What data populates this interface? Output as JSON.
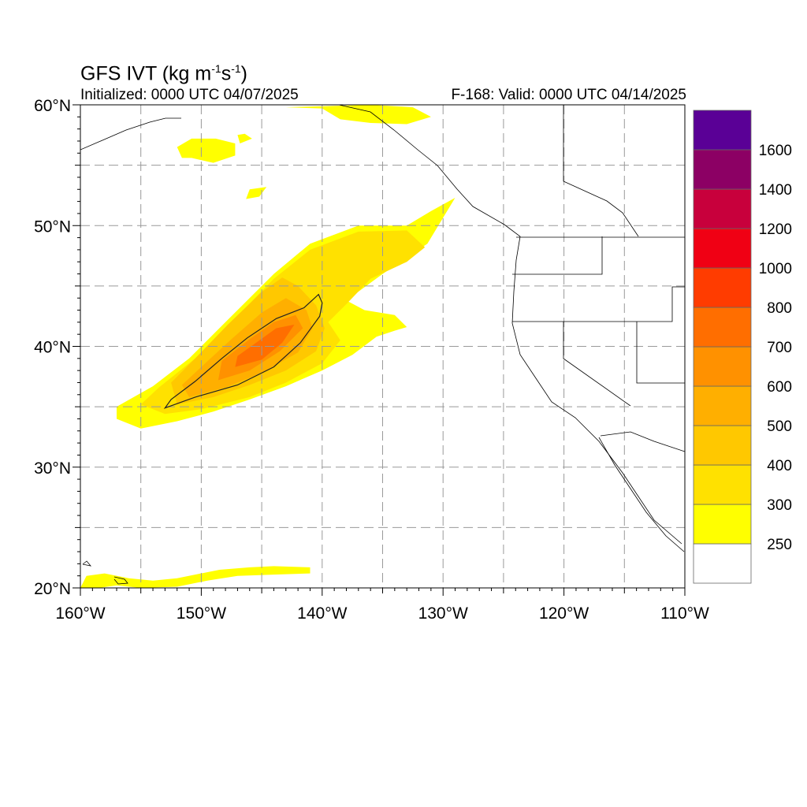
{
  "header": {
    "title_prefix": "GFS IVT (kg m",
    "title_exp1": "-1",
    "title_mid": "s",
    "title_exp2": "-1",
    "title_suffix": ")",
    "initialized": "Initialized: 0000 UTC 04/07/2025",
    "valid": "F-168: Valid: 0000 UTC 04/14/2025"
  },
  "map": {
    "lon_range": [
      -160,
      -110
    ],
    "lat_range": [
      20,
      60
    ],
    "lat_tick_labels": [
      {
        "lat": 60,
        "label": "60°N"
      },
      {
        "lat": 50,
        "label": "50°N"
      },
      {
        "lat": 40,
        "label": "40°N"
      },
      {
        "lat": 30,
        "label": "30°N"
      },
      {
        "lat": 20,
        "label": "20°N"
      }
    ],
    "lon_tick_labels": [
      {
        "lon": -160,
        "label": "160°W"
      },
      {
        "lon": -150,
        "label": "150°W"
      },
      {
        "lon": -140,
        "label": "140°W"
      },
      {
        "lon": -130,
        "label": "130°W"
      },
      {
        "lon": -120,
        "label": "120°W"
      },
      {
        "lon": -110,
        "label": "110°W"
      }
    ],
    "grid_lats": [
      25,
      30,
      35,
      40,
      45,
      50,
      55
    ],
    "grid_lons": [
      -155,
      -150,
      -145,
      -140,
      -135,
      -130,
      -125,
      -120,
      -115
    ]
  },
  "chart_data": {
    "type": "heatmap",
    "title": "GFS IVT (kg m-1s-1)",
    "variable": "IVT",
    "units": "kg m-1s-1",
    "grid": true,
    "legend_placement": "right",
    "colorbar": {
      "levels": [
        250,
        300,
        400,
        500,
        600,
        700,
        800,
        1000,
        1200,
        1400,
        1600
      ],
      "labels": [
        "250",
        "300",
        "400",
        "500",
        "600",
        "700",
        "800",
        "1000",
        "1200",
        "1400",
        "1600"
      ],
      "colors": [
        "#ffffff",
        "#ffff00",
        "#ffe100",
        "#ffc800",
        "#ffaf00",
        "#ff9100",
        "#ff6e00",
        "#ff3c00",
        "#f00014",
        "#c8003c",
        "#8c0064",
        "#5a0096"
      ]
    },
    "contour_level": 700,
    "features": [
      {
        "name": "main-ivt-plume",
        "polygons": [
          {
            "value": 250,
            "coords": [
              [
                -157,
                34
              ],
              [
                -155,
                33.2
              ],
              [
                -152,
                33.8
              ],
              [
                -149,
                34.6
              ],
              [
                -146,
                35.6
              ],
              [
                -143,
                36.7
              ],
              [
                -140,
                38
              ],
              [
                -137.5,
                39.3
              ],
              [
                -135.5,
                40.8
              ],
              [
                -134,
                41.3
              ],
              [
                -133,
                41.6
              ],
              [
                -134,
                42.6
              ],
              [
                -136.5,
                43
              ],
              [
                -138,
                43.8
              ],
              [
                -135,
                46
              ],
              [
                -131.3,
                48.5
              ],
              [
                -129,
                52.3
              ],
              [
                -131,
                51.2
              ],
              [
                -133,
                50
              ],
              [
                -137,
                50
              ],
              [
                -141,
                48.5
              ],
              [
                -144,
                46
              ],
              [
                -148,
                42
              ],
              [
                -151,
                39
              ],
              [
                -154,
                36.7
              ],
              [
                -157,
                35
              ]
            ]
          },
          {
            "value": 300,
            "coords": [
              [
                -153,
                34.4
              ],
              [
                -150,
                34.8
              ],
              [
                -146,
                35.8
              ],
              [
                -143,
                37
              ],
              [
                -140,
                38.6
              ],
              [
                -138.5,
                40.5
              ],
              [
                -139.5,
                42
              ],
              [
                -138,
                43.5
              ],
              [
                -136,
                45.6
              ],
              [
                -133,
                47
              ],
              [
                -131.5,
                48.2
              ],
              [
                -133,
                49.6
              ],
              [
                -137,
                49.5
              ],
              [
                -141,
                48
              ],
              [
                -144,
                45.6
              ],
              [
                -147.5,
                42
              ],
              [
                -150.5,
                39
              ],
              [
                -153.5,
                36.6
              ],
              [
                -155,
                35.2
              ]
            ]
          },
          {
            "value": 400,
            "coords": [
              [
                -152,
                35.2
              ],
              [
                -149,
                35.8
              ],
              [
                -146,
                36.8
              ],
              [
                -143,
                38
              ],
              [
                -140.5,
                39.6
              ],
              [
                -139.8,
                41.5
              ],
              [
                -140.5,
                43.4
              ],
              [
                -142,
                45
              ],
              [
                -143.3,
                45.7
              ],
              [
                -145,
                44.5
              ],
              [
                -147.8,
                41.8
              ],
              [
                -150.5,
                39
              ],
              [
                -152.5,
                37
              ]
            ]
          },
          {
            "value": 500,
            "coords": [
              [
                -151,
                35.8
              ],
              [
                -148,
                36.6
              ],
              [
                -145,
                37.8
              ],
              [
                -142,
                39.5
              ],
              [
                -140.8,
                41.5
              ],
              [
                -141.3,
                43
              ],
              [
                -143,
                44
              ],
              [
                -145,
                42.8
              ],
              [
                -147.5,
                40.6
              ],
              [
                -150,
                38.3
              ],
              [
                -151.6,
                36.8
              ]
            ]
          },
          {
            "value": 600,
            "coords": [
              [
                -148.6,
                37.2
              ],
              [
                -146,
                38
              ],
              [
                -143.5,
                39.6
              ],
              [
                -141.6,
                41.5
              ],
              [
                -142.2,
                42.6
              ],
              [
                -144,
                42
              ],
              [
                -146,
                40.6
              ],
              [
                -148.3,
                38.8
              ]
            ]
          },
          {
            "value": 700,
            "coords": [
              [
                -147.2,
                38.3
              ],
              [
                -145,
                38.9
              ],
              [
                -143.3,
                40.3
              ],
              [
                -142.3,
                41.8
              ],
              [
                -143.8,
                41.5
              ],
              [
                -145.6,
                40.2
              ],
              [
                -147,
                39.2
              ]
            ]
          }
        ],
        "contour_700": [
          [
            -153,
            34.9
          ],
          [
            -150.5,
            35.8
          ],
          [
            -147,
            36.8
          ],
          [
            -144,
            38.3
          ],
          [
            -141.8,
            40.3
          ],
          [
            -140.2,
            42.5
          ],
          [
            -140,
            43.6
          ],
          [
            -140.3,
            44.3
          ],
          [
            -141.5,
            43.2
          ],
          [
            -143.8,
            42.3
          ],
          [
            -146.2,
            40.7
          ],
          [
            -148.3,
            39
          ],
          [
            -150.5,
            37.1
          ],
          [
            -152.5,
            35.6
          ]
        ]
      },
      {
        "name": "north-spots",
        "polygons": [
          {
            "value": 250,
            "coords": [
              [
                -146,
                53
              ],
              [
                -144.6,
                53.2
              ],
              [
                -145.2,
                52.4
              ],
              [
                -146.3,
                52.2
              ]
            ]
          },
          {
            "value": 250,
            "coords": [
              [
                -150.8,
                55.6
              ],
              [
                -149,
                55.2
              ],
              [
                -147.2,
                55.8
              ],
              [
                -147.2,
                56.8
              ],
              [
                -148.8,
                57.2
              ],
              [
                -150.8,
                57.2
              ],
              [
                -152,
                56.5
              ],
              [
                -151.6,
                55.6
              ]
            ]
          },
          {
            "value": 250,
            "coords": [
              [
                -146.8,
                56.8
              ],
              [
                -145.8,
                57.2
              ],
              [
                -146.4,
                57.6
              ],
              [
                -147,
                57.5
              ]
            ]
          },
          {
            "value": 250,
            "coords": [
              [
                -143,
                59.8
              ],
              [
                -140,
                59.7
              ],
              [
                -138.5,
                58.8
              ],
              [
                -136,
                58.5
              ],
              [
                -133,
                58.4
              ],
              [
                -131,
                59
              ],
              [
                -132.5,
                59.8
              ],
              [
                -136,
                60
              ]
            ]
          }
        ]
      },
      {
        "name": "subtropical-band",
        "polygons": [
          {
            "value": 250,
            "coords": [
              [
                -160,
                20
              ],
              [
                -159.5,
                21
              ],
              [
                -158,
                21.2
              ],
              [
                -156,
                20.8
              ],
              [
                -154,
                20.6
              ],
              [
                -152,
                20.8
              ],
              [
                -150,
                21.2
              ],
              [
                -148.5,
                21.5
              ],
              [
                -146,
                21.7
              ],
              [
                -144,
                21.8
              ],
              [
                -141,
                21.7
              ],
              [
                -141,
                21.2
              ],
              [
                -144,
                21.1
              ],
              [
                -147,
                21
              ],
              [
                -149.5,
                20.6
              ],
              [
                -152,
                20.1
              ],
              [
                -155,
                20
              ],
              [
                -157,
                20.2
              ],
              [
                -158.5,
                20
              ]
            ]
          }
        ]
      }
    ]
  }
}
